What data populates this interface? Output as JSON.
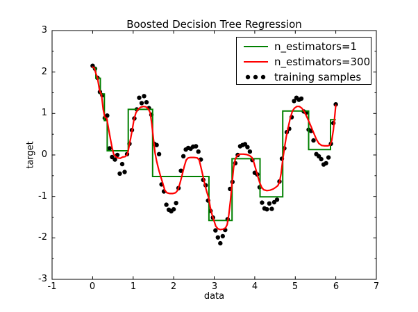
{
  "figure": {
    "title": "Boosted Decision Tree Regression",
    "xlabel": "data",
    "ylabel": "target"
  },
  "chart_data": {
    "type": "line",
    "title": "Boosted Decision Tree Regression",
    "xlabel": "data",
    "ylabel": "target",
    "xlim": [
      -1,
      7
    ],
    "ylim": [
      -3,
      3
    ],
    "xticks": [
      "-1",
      "0",
      "1",
      "2",
      "3",
      "4",
      "5",
      "6",
      "7"
    ],
    "xtick_values": [
      -1,
      0,
      1,
      2,
      3,
      4,
      5,
      6,
      7
    ],
    "yticks": [
      "-3",
      "-2",
      "-1",
      "0",
      "1",
      "2",
      "3"
    ],
    "ytick_values": [
      -3,
      -2,
      -1,
      0,
      1,
      2,
      3
    ],
    "minor_tick_step": 0.5,
    "grid": false,
    "background": "#ffffff",
    "frame_color": "#000000",
    "legend": {
      "position": "upper right",
      "entries": [
        {
          "label": "n_estimators=1",
          "type": "line",
          "color": "#008000"
        },
        {
          "label": "n_estimators=300",
          "type": "line",
          "color": "#ff0000"
        },
        {
          "label": "training samples",
          "type": "scatter",
          "color": "#000000"
        }
      ]
    },
    "series": [
      {
        "name": "training samples",
        "type": "scatter",
        "color": "#000000",
        "marker": "o",
        "marker_radius": 3.2,
        "x": [
          0.0,
          0.06,
          0.12,
          0.18,
          0.24,
          0.3,
          0.36,
          0.42,
          0.48,
          0.55,
          0.61,
          0.67,
          0.73,
          0.79,
          0.85,
          0.91,
          0.97,
          1.03,
          1.09,
          1.15,
          1.21,
          1.27,
          1.33,
          1.39,
          1.45,
          1.52,
          1.58,
          1.64,
          1.7,
          1.76,
          1.82,
          1.88,
          1.94,
          2.0,
          2.06,
          2.12,
          2.18,
          2.24,
          2.3,
          2.36,
          2.42,
          2.48,
          2.55,
          2.61,
          2.67,
          2.73,
          2.79,
          2.85,
          2.91,
          2.97,
          3.03,
          3.09,
          3.15,
          3.21,
          3.27,
          3.33,
          3.39,
          3.45,
          3.52,
          3.58,
          3.64,
          3.7,
          3.76,
          3.82,
          3.88,
          3.94,
          4.0,
          4.06,
          4.12,
          4.18,
          4.24,
          4.3,
          4.36,
          4.42,
          4.48,
          4.55,
          4.61,
          4.67,
          4.73,
          4.79,
          4.85,
          4.91,
          4.97,
          5.03,
          5.09,
          5.15,
          5.21,
          5.27,
          5.33,
          5.39,
          5.45,
          5.52,
          5.58,
          5.64,
          5.7,
          5.76,
          5.82,
          5.88,
          5.94,
          6.0
        ],
        "y": [
          2.15,
          2.08,
          1.86,
          1.52,
          1.44,
          0.89,
          0.95,
          0.16,
          -0.05,
          -0.11,
          0.0,
          -0.45,
          -0.22,
          -0.41,
          0.02,
          0.27,
          0.6,
          0.88,
          1.1,
          1.38,
          1.25,
          1.42,
          1.27,
          1.13,
          0.97,
          0.27,
          0.24,
          0.02,
          -0.71,
          -0.88,
          -1.2,
          -1.32,
          -1.36,
          -1.31,
          -1.16,
          -0.8,
          -0.38,
          -0.03,
          0.13,
          0.17,
          0.15,
          0.2,
          0.21,
          0.08,
          -0.11,
          -0.6,
          -0.73,
          -1.1,
          -1.35,
          -1.51,
          -1.82,
          -1.99,
          -2.13,
          -1.96,
          -1.81,
          -1.55,
          -0.82,
          -0.65,
          -0.2,
          0.0,
          0.21,
          0.24,
          0.26,
          0.19,
          0.08,
          -0.12,
          -0.43,
          -0.47,
          -0.78,
          -1.15,
          -1.29,
          -1.31,
          -1.17,
          -1.3,
          -1.14,
          -1.08,
          -0.64,
          -0.09,
          0.16,
          0.55,
          0.63,
          0.91,
          1.3,
          1.38,
          1.33,
          1.36,
          1.05,
          1.02,
          0.61,
          0.58,
          0.35,
          0.02,
          -0.03,
          -0.1,
          -0.23,
          -0.2,
          -0.06,
          0.27,
          0.77,
          1.22
        ]
      },
      {
        "name": "n_estimators=1",
        "type": "step",
        "color": "#008000",
        "width": 2,
        "steps": [
          [
            0.0,
            0.08,
            2.1
          ],
          [
            0.08,
            0.19,
            1.85
          ],
          [
            0.19,
            0.29,
            1.47
          ],
          [
            0.29,
            0.36,
            0.83
          ],
          [
            0.36,
            0.88,
            0.1
          ],
          [
            0.88,
            1.48,
            1.1
          ],
          [
            1.48,
            2.87,
            -0.52
          ],
          [
            2.87,
            3.44,
            -1.58
          ],
          [
            3.44,
            4.13,
            -0.09
          ],
          [
            4.13,
            4.69,
            -1.01
          ],
          [
            4.69,
            5.33,
            1.06
          ],
          [
            5.33,
            5.87,
            0.13
          ],
          [
            5.87,
            6.0,
            0.85
          ]
        ]
      },
      {
        "name": "n_estimators=300",
        "type": "line",
        "color": "#ff0000",
        "width": 2.2,
        "x": [
          0.0,
          0.04,
          0.08,
          0.12,
          0.17,
          0.22,
          0.26,
          0.3,
          0.35,
          0.4,
          0.44,
          0.48,
          0.52,
          0.57,
          0.62,
          0.68,
          0.74,
          0.8,
          0.85,
          0.88,
          0.91,
          0.94,
          0.98,
          1.02,
          1.07,
          1.12,
          1.18,
          1.25,
          1.32,
          1.38,
          1.42,
          1.46,
          1.5,
          1.54,
          1.58,
          1.63,
          1.68,
          1.73,
          1.78,
          1.83,
          1.9,
          1.98,
          2.05,
          2.1,
          2.15,
          2.2,
          2.26,
          2.31,
          2.36,
          2.42,
          2.5,
          2.58,
          2.63,
          2.67,
          2.72,
          2.77,
          2.82,
          2.86,
          2.9,
          2.95,
          3.0,
          3.04,
          3.09,
          3.15,
          3.22,
          3.28,
          3.32,
          3.36,
          3.4,
          3.44,
          3.48,
          3.52,
          3.57,
          3.64,
          3.72,
          3.8,
          3.88,
          3.93,
          3.97,
          4.02,
          4.07,
          4.12,
          4.17,
          4.22,
          4.3,
          4.38,
          4.46,
          4.52,
          4.57,
          4.61,
          4.65,
          4.69,
          4.73,
          4.78,
          4.83,
          4.88,
          4.93,
          4.98,
          5.04,
          5.1,
          5.16,
          5.22,
          5.28,
          5.34,
          5.4,
          5.46,
          5.52,
          5.58,
          5.65,
          5.72,
          5.8,
          5.86,
          5.9,
          5.94,
          5.97,
          6.0
        ],
        "y": [
          2.12,
          2.1,
          1.97,
          1.86,
          1.56,
          1.45,
          1.1,
          0.92,
          0.88,
          0.6,
          0.38,
          0.18,
          0.02,
          -0.04,
          -0.07,
          -0.08,
          -0.05,
          -0.04,
          0.0,
          0.1,
          0.27,
          0.4,
          0.62,
          0.85,
          1.02,
          1.1,
          1.15,
          1.17,
          1.16,
          1.1,
          1.02,
          0.75,
          0.4,
          0.05,
          -0.15,
          -0.35,
          -0.52,
          -0.68,
          -0.85,
          -0.91,
          -0.93,
          -0.93,
          -0.91,
          -0.85,
          -0.7,
          -0.52,
          -0.28,
          -0.12,
          -0.07,
          -0.06,
          -0.06,
          -0.07,
          -0.12,
          -0.28,
          -0.5,
          -0.72,
          -0.9,
          -1.02,
          -1.25,
          -1.45,
          -1.6,
          -1.72,
          -1.78,
          -1.8,
          -1.79,
          -1.76,
          -1.68,
          -1.45,
          -1.1,
          -0.68,
          -0.3,
          -0.1,
          -0.01,
          0.02,
          0.02,
          0.01,
          -0.02,
          -0.06,
          -0.15,
          -0.32,
          -0.5,
          -0.66,
          -0.78,
          -0.84,
          -0.86,
          -0.85,
          -0.82,
          -0.78,
          -0.74,
          -0.66,
          -0.45,
          -0.12,
          0.15,
          0.45,
          0.68,
          0.9,
          1.06,
          1.13,
          1.17,
          1.17,
          1.13,
          1.05,
          0.93,
          0.8,
          0.66,
          0.52,
          0.38,
          0.28,
          0.23,
          0.22,
          0.22,
          0.24,
          0.35,
          0.6,
          0.9,
          1.2
        ]
      }
    ]
  }
}
